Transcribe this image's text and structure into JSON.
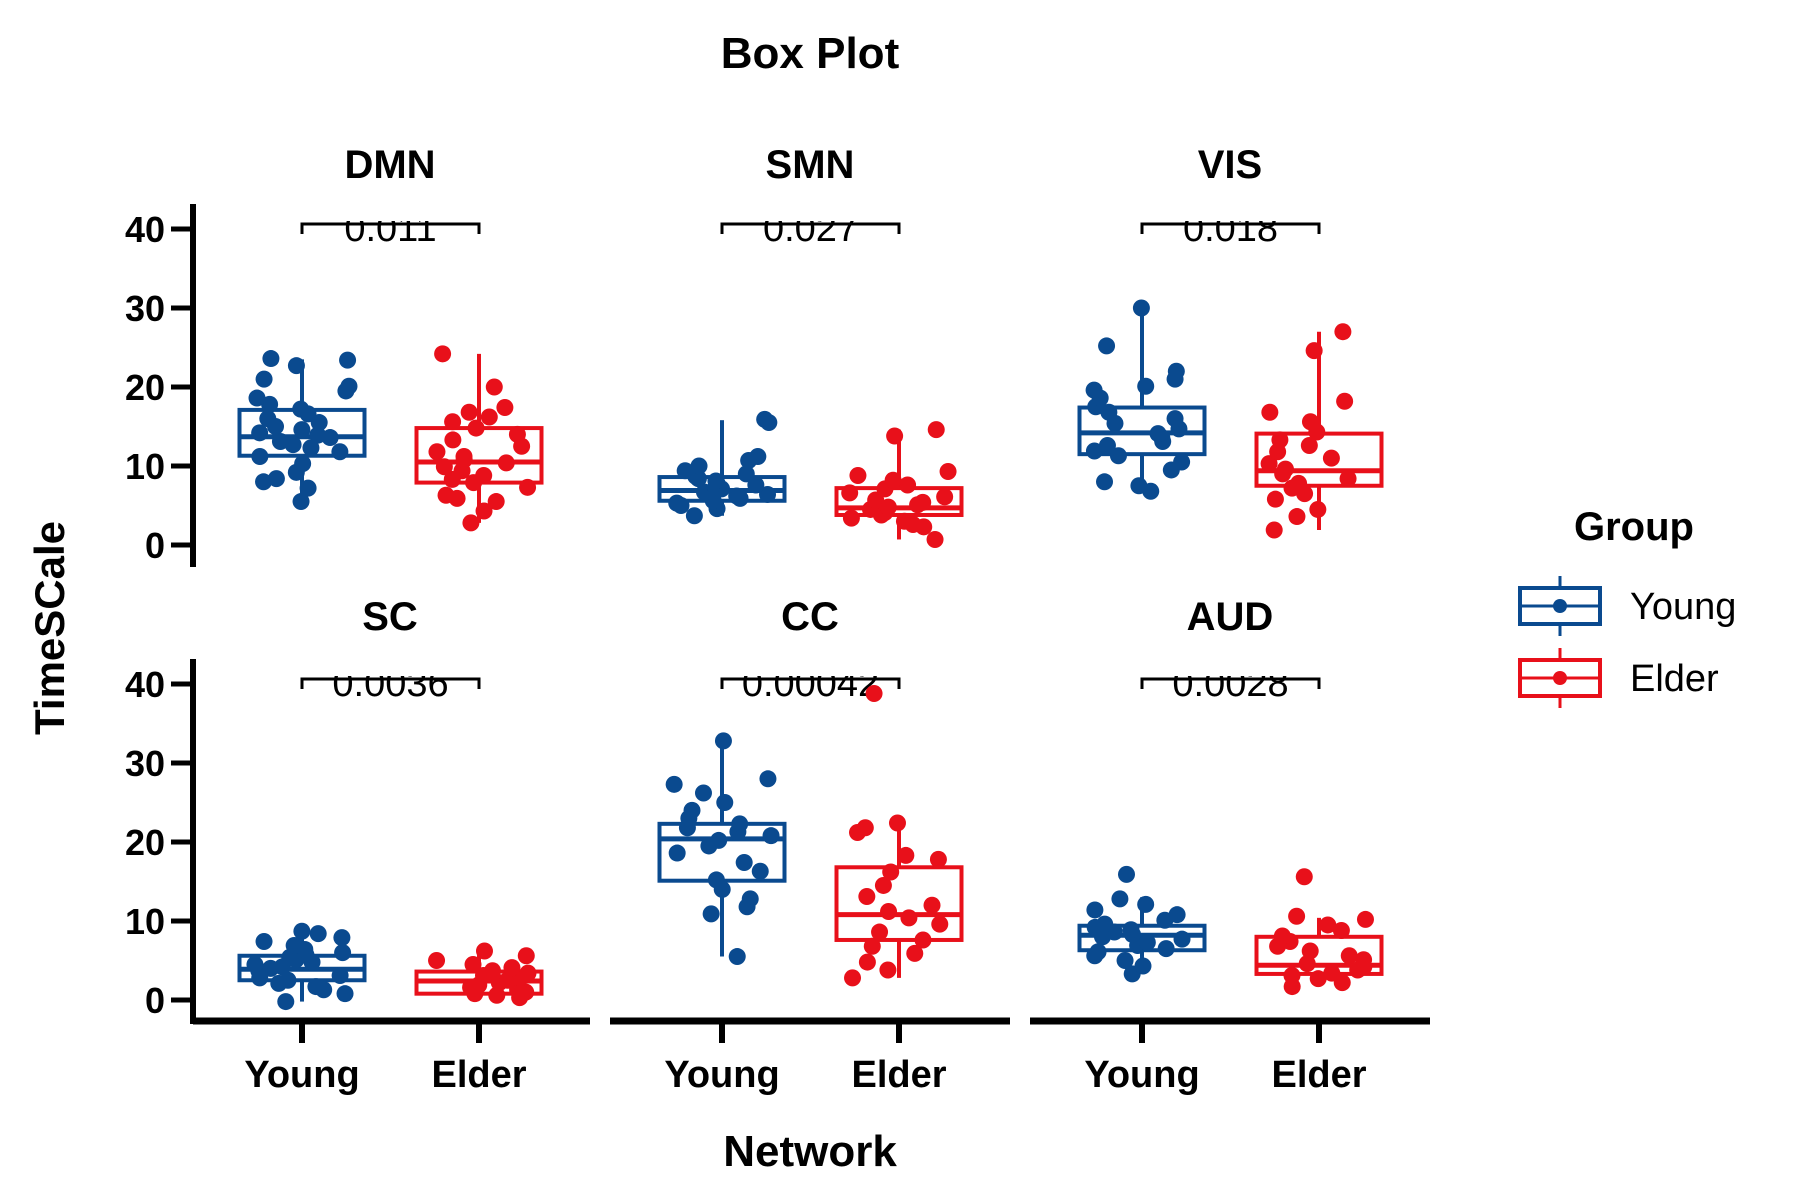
{
  "chart_data": {
    "type": "box",
    "title": "Box Plot",
    "xlabel": "Network",
    "ylabel": "TimeSCale",
    "ylim": [
      0,
      40
    ],
    "yticks": [
      "0",
      "10",
      "20",
      "30",
      "40"
    ],
    "categories": [
      "Young",
      "Elder"
    ],
    "legend": {
      "title": "Group",
      "position": "right",
      "items": [
        {
          "label": "Young",
          "color": "#0a4a8f"
        },
        {
          "label": "Elder",
          "color": "#e8101a"
        }
      ]
    },
    "panels": [
      {
        "name": "DMN",
        "pvalue": "0.011",
        "boxes": [
          {
            "group": "Young",
            "min": 5.5,
            "q1": 11.3,
            "median": 13.7,
            "q3": 17.1,
            "max": 23.5,
            "points": [
              5.5,
              7.2,
              8.0,
              8.4,
              9.2,
              10.3,
              11.2,
              11.8,
              12.3,
              12.7,
              13.1,
              13.6,
              13.9,
              14.2,
              14.6,
              15.0,
              15.5,
              16.0,
              16.6,
              17.2,
              17.8,
              18.6,
              19.5,
              20.1,
              21.0,
              22.7,
              23.4,
              23.6
            ]
          },
          {
            "group": "Elder",
            "min": 2.8,
            "q1": 7.9,
            "median": 10.5,
            "q3": 14.8,
            "max": 24.2,
            "points": [
              2.8,
              4.3,
              5.5,
              5.9,
              6.3,
              7.3,
              7.9,
              8.3,
              8.8,
              9.4,
              9.9,
              10.4,
              10.8,
              11.2,
              11.8,
              12.5,
              13.3,
              14.0,
              14.8,
              15.6,
              16.2,
              16.8,
              17.4,
              20.0,
              24.2
            ]
          }
        ]
      },
      {
        "name": "SMN",
        "pvalue": "0.027",
        "boxes": [
          {
            "group": "Young",
            "min": 3.7,
            "q1": 5.6,
            "median": 6.9,
            "q3": 8.6,
            "max": 15.8,
            "points": [
              3.7,
              4.6,
              5.0,
              5.3,
              5.6,
              5.9,
              6.2,
              6.4,
              6.7,
              6.9,
              7.1,
              7.3,
              7.6,
              7.8,
              8.1,
              8.4,
              8.7,
              9.0,
              9.4,
              10.0,
              10.7,
              11.2,
              15.5,
              15.9
            ]
          },
          {
            "group": "Elder",
            "min": 0.7,
            "q1": 3.8,
            "median": 4.7,
            "q3": 7.2,
            "max": 14.6,
            "points": [
              0.7,
              2.3,
              2.6,
              3.0,
              3.4,
              3.8,
              4.1,
              4.5,
              4.8,
              5.1,
              5.4,
              5.7,
              6.1,
              6.6,
              7.1,
              7.6,
              8.2,
              8.8,
              9.3,
              13.8,
              14.6
            ]
          }
        ]
      },
      {
        "name": "VIS",
        "pvalue": "0.018",
        "boxes": [
          {
            "group": "Young",
            "min": 6.8,
            "q1": 11.5,
            "median": 14.2,
            "q3": 17.4,
            "max": 30.0,
            "points": [
              6.8,
              7.5,
              8.0,
              9.5,
              10.5,
              11.3,
              11.9,
              12.6,
              13.1,
              13.6,
              14.1,
              14.7,
              15.4,
              16.0,
              16.8,
              17.5,
              18.6,
              19.6,
              20.1,
              21.0,
              22.0,
              25.2,
              30.0
            ]
          },
          {
            "group": "Elder",
            "min": 1.9,
            "q1": 7.5,
            "median": 9.4,
            "q3": 14.1,
            "max": 27.0,
            "points": [
              1.9,
              3.6,
              4.5,
              5.8,
              6.5,
              7.2,
              7.8,
              8.4,
              9.0,
              9.6,
              10.3,
              11.0,
              11.8,
              12.6,
              13.3,
              14.3,
              15.6,
              16.8,
              18.2,
              24.6,
              27.0
            ]
          }
        ]
      },
      {
        "name": "SC",
        "pvalue": "0.0036",
        "boxes": [
          {
            "group": "Young",
            "min": -0.2,
            "q1": 2.5,
            "median": 3.9,
            "q3": 5.6,
            "max": 8.7,
            "points": [
              -0.2,
              0.8,
              1.3,
              1.7,
              2.1,
              2.5,
              2.8,
              3.1,
              3.4,
              3.7,
              4.0,
              4.2,
              4.5,
              4.8,
              5.1,
              5.4,
              5.7,
              6.0,
              6.4,
              6.9,
              7.4,
              7.9,
              8.4,
              8.7
            ]
          },
          {
            "group": "Elder",
            "min": 0.3,
            "q1": 0.8,
            "median": 2.4,
            "q3": 3.6,
            "max": 6.2,
            "points": [
              0.3,
              0.6,
              0.8,
              1.0,
              1.3,
              1.6,
              1.9,
              2.2,
              2.5,
              2.8,
              3.1,
              3.4,
              3.7,
              4.1,
              4.5,
              5.0,
              5.6,
              6.2
            ]
          }
        ]
      },
      {
        "name": "CC",
        "pvalue": "0.00042",
        "boxes": [
          {
            "group": "Young",
            "min": 5.5,
            "q1": 15.1,
            "median": 20.4,
            "q3": 22.3,
            "max": 32.7,
            "points": [
              5.5,
              10.9,
              11.8,
              12.8,
              14.0,
              15.2,
              16.3,
              17.4,
              18.6,
              19.5,
              20.2,
              20.8,
              21.3,
              21.8,
              22.3,
              23.0,
              24.0,
              25.0,
              26.2,
              27.3,
              28.0,
              32.8
            ]
          },
          {
            "group": "Elder",
            "min": 2.8,
            "q1": 7.6,
            "median": 10.8,
            "q3": 16.8,
            "max": 22.1,
            "points": [
              2.8,
              3.8,
              4.8,
              5.9,
              6.8,
              7.6,
              8.6,
              9.6,
              10.4,
              11.2,
              12.0,
              13.1,
              14.5,
              16.2,
              17.8,
              18.3,
              21.2,
              21.8,
              22.4,
              38.8
            ]
          }
        ]
      },
      {
        "name": "AUD",
        "pvalue": "0.0028",
        "boxes": [
          {
            "group": "Young",
            "min": 3.3,
            "q1": 6.3,
            "median": 8.2,
            "q3": 9.4,
            "max": 13.0,
            "points": [
              3.3,
              4.3,
              5.0,
              5.6,
              6.1,
              6.5,
              6.9,
              7.3,
              7.7,
              8.0,
              8.3,
              8.6,
              8.9,
              9.2,
              9.6,
              10.1,
              10.8,
              11.4,
              12.1,
              12.8,
              15.9
            ]
          },
          {
            "group": "Elder",
            "min": 1.7,
            "q1": 3.3,
            "median": 4.4,
            "q3": 8.0,
            "max": 10.4,
            "points": [
              1.7,
              2.2,
              2.7,
              3.1,
              3.4,
              3.8,
              4.2,
              4.6,
              5.1,
              5.6,
              6.2,
              6.8,
              7.4,
              8.1,
              8.8,
              9.5,
              10.2,
              10.6,
              15.6
            ]
          }
        ]
      }
    ]
  }
}
